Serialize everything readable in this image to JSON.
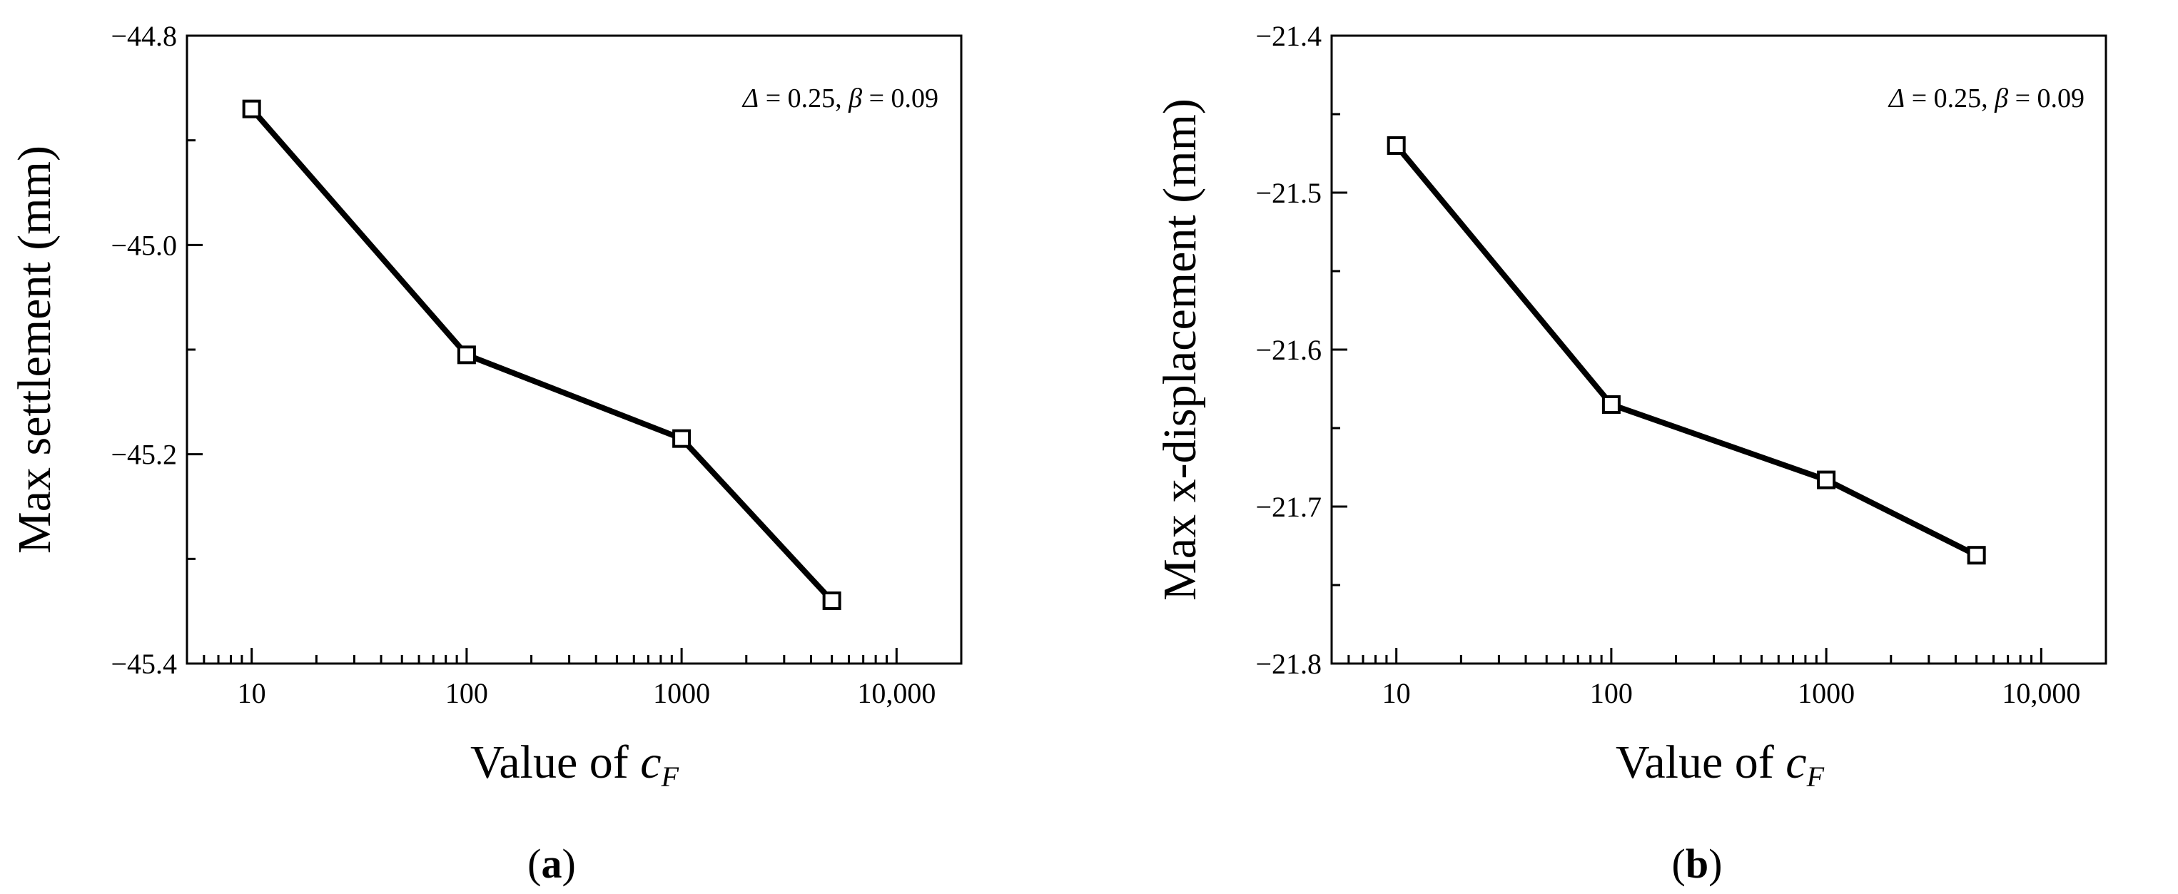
{
  "chart_data": [
    {
      "type": "line",
      "panel_label": "a",
      "x": [
        10,
        100,
        1000,
        5000
      ],
      "series": [
        {
          "name": "Max settlement",
          "values": [
            -44.87,
            -45.105,
            -45.185,
            -45.34
          ],
          "marker": "open-square",
          "color": "#000000"
        }
      ],
      "xlabel": {
        "prefix": "Value of ",
        "symbol": "c",
        "subscript": "F"
      },
      "ylabel": "Max settlement (mm)",
      "xscale": "log",
      "xlim": [
        5,
        20000
      ],
      "ylim": [
        -45.4,
        -44.8
      ],
      "xticks": [
        10,
        100,
        1000,
        10000
      ],
      "xtick_labels": [
        "10",
        "100",
        "1000",
        "10,000"
      ],
      "yticks": [
        -44.8,
        -45.0,
        -45.2,
        -45.4
      ],
      "ytick_labels": [
        "−44.8",
        "−45.0",
        "−45.2",
        "−45.4"
      ],
      "annotation": {
        "delta_symbol": "Δ",
        "delta_text": " = 0.25, ",
        "beta_symbol": "β",
        "beta_text": " = 0.09"
      },
      "grid": false,
      "legend": "none"
    },
    {
      "type": "line",
      "panel_label": "b",
      "x": [
        10,
        100,
        1000,
        5000
      ],
      "series": [
        {
          "name": "Max x-displacement",
          "values": [
            -21.47,
            -21.635,
            -21.683,
            -21.731
          ],
          "marker": "open-square",
          "color": "#000000"
        }
      ],
      "xlabel": {
        "prefix": "Value of ",
        "symbol": "c",
        "subscript": "F"
      },
      "ylabel": "Max x-displacement (mm)",
      "xscale": "log",
      "xlim": [
        5,
        20000
      ],
      "ylim": [
        -21.8,
        -21.4
      ],
      "xticks": [
        10,
        100,
        1000,
        10000
      ],
      "xtick_labels": [
        "10",
        "100",
        "1000",
        "10,000"
      ],
      "yticks": [
        -21.4,
        -21.5,
        -21.6,
        -21.7,
        -21.8
      ],
      "ytick_labels": [
        "−21.4",
        "−21.5",
        "−21.6",
        "−21.7",
        "−21.8"
      ],
      "annotation": {
        "delta_symbol": "Δ",
        "delta_text": " = 0.25, ",
        "beta_symbol": "β",
        "beta_text": " = 0.09"
      },
      "grid": false,
      "legend": "none"
    }
  ]
}
